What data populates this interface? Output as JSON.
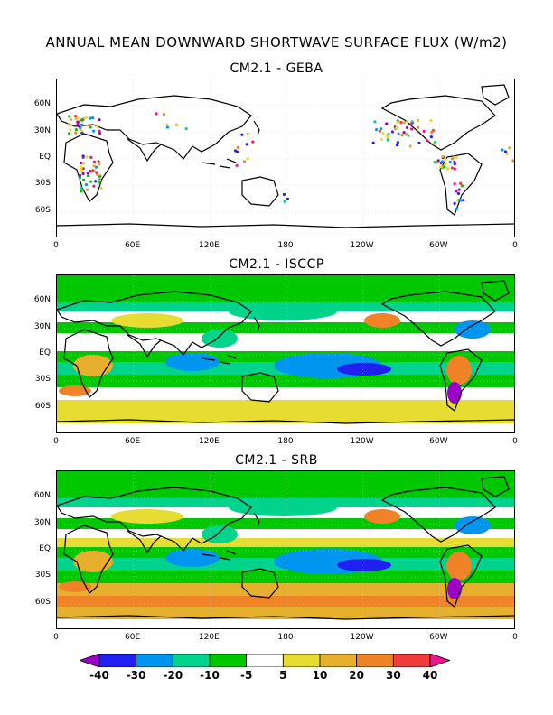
{
  "title": "ANNUAL MEAN DOWNWARD SHORTWAVE SURFACE FLUX (W/m2)",
  "panels": [
    {
      "title": "CM2.1  -  GEBA"
    },
    {
      "title": "CM2.1  -  ISCCP"
    },
    {
      "title": "CM2.1  -  SRB"
    }
  ],
  "lat_labels": [
    "60N",
    "30N",
    "EQ",
    "30S",
    "60S"
  ],
  "lon_labels": [
    "0",
    "60E",
    "120E",
    "180",
    "120W",
    "60W",
    "0"
  ],
  "colorbar": {
    "labels": [
      "-40",
      "-30",
      "-20",
      "-10",
      "-5",
      "5",
      "10",
      "20",
      "30",
      "40"
    ],
    "colors": [
      "#9b00c8",
      "#2020f0",
      "#0096f0",
      "#00d48c",
      "#00c800",
      "#ffffff",
      "#e6dc32",
      "#e6af2d",
      "#f08228",
      "#f03c3c",
      "#f0148c"
    ]
  }
}
